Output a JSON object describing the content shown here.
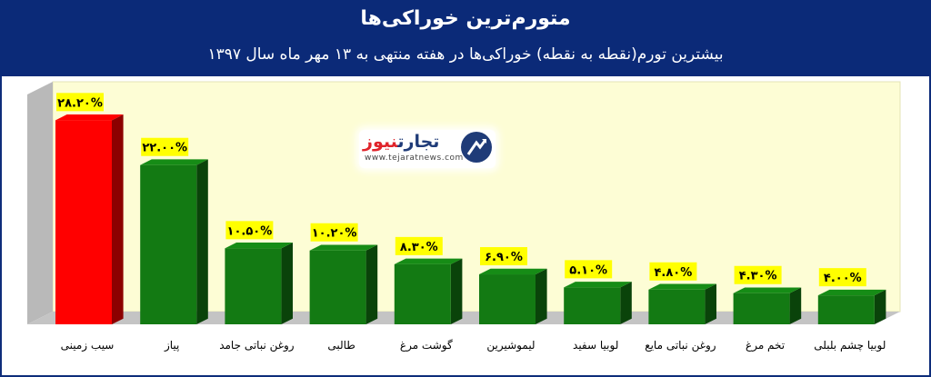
{
  "header": {
    "title": "متورم‌ترین خوراکی‌ها",
    "subtitle": "بیشترین تورم(نقطه به نقطه) خوراکی‌ها در هفته منتهی به ۱۳ مهر ماه سال ۱۳۹۷"
  },
  "logo": {
    "name_blue": "تجارت",
    "name_red": "نیوز",
    "url": "www.tejaratnews.com"
  },
  "colors": {
    "header_bg": "#0b2a78",
    "highlight_bar": "#ff0000",
    "bar": "#137a13",
    "label_bg": "#ffff00",
    "plot_bg": "#fdfdd5"
  },
  "chart_data": {
    "type": "bar",
    "title": "متورم‌ترین خوراکی‌ها",
    "subtitle": "بیشترین تورم(نقطه به نقطه) خوراکی‌ها در هفته منتهی به ۱۳ مهر ماه سال ۱۳۹۷",
    "categories": [
      "سیب زمینی",
      "پیاز",
      "روغن نباتی جامد",
      "طالبی",
      "گوشت مرغ",
      "لیموشیرین",
      "لوبیا سفید",
      "روغن نباتی مایع",
      "تخم مرغ",
      "لوبیا چشم بلبلی"
    ],
    "values": [
      28.2,
      22.0,
      10.5,
      10.2,
      8.3,
      6.9,
      5.1,
      4.8,
      4.3,
      4.0
    ],
    "data_labels": [
      "۲۸.۲۰%",
      "۲۲.۰۰%",
      "۱۰.۵۰%",
      "۱۰.۲۰%",
      "۸.۳۰%",
      "۶.۹۰%",
      "۵.۱۰%",
      "۴.۸۰%",
      "۴.۳۰%",
      "۴.۰۰%"
    ],
    "highlight_index": 0,
    "ylim": [
      0,
      30
    ],
    "grid": false,
    "legend": "none",
    "style": "3d-bar"
  }
}
